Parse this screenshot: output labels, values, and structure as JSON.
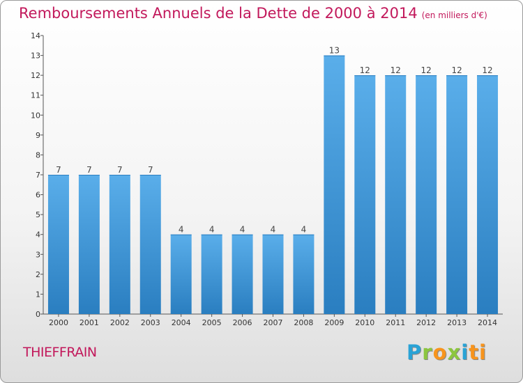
{
  "header": {
    "title": "Remboursements Annuels de la Dette de 2000 à 2014",
    "unit": "(en milliers d'€)"
  },
  "footer": {
    "commune": "THIEFFRAIN",
    "logo": [
      "P",
      "r",
      "o",
      "x",
      "i",
      "ti"
    ]
  },
  "colors": {
    "title": "#c2185b",
    "bar_top": "#5aaeea",
    "bar_bottom": "#2a7ec0",
    "axis": "#555555"
  },
  "chart_data": {
    "type": "bar",
    "title": "Remboursements Annuels de la Dette de 2000 à 2014",
    "categories": [
      "2000",
      "2001",
      "2002",
      "2003",
      "2004",
      "2005",
      "2006",
      "2007",
      "2008",
      "2009",
      "2010",
      "2011",
      "2012",
      "2013",
      "2014"
    ],
    "values": [
      7,
      7,
      7,
      7,
      4,
      4,
      4,
      4,
      4,
      13,
      12,
      12,
      12,
      12,
      12
    ],
    "ylim": [
      0,
      14
    ],
    "yticks": [
      0,
      1,
      2,
      3,
      4,
      5,
      6,
      7,
      8,
      9,
      10,
      11,
      12,
      13,
      14
    ],
    "data_labels": true,
    "grid": false,
    "legend": "none"
  }
}
